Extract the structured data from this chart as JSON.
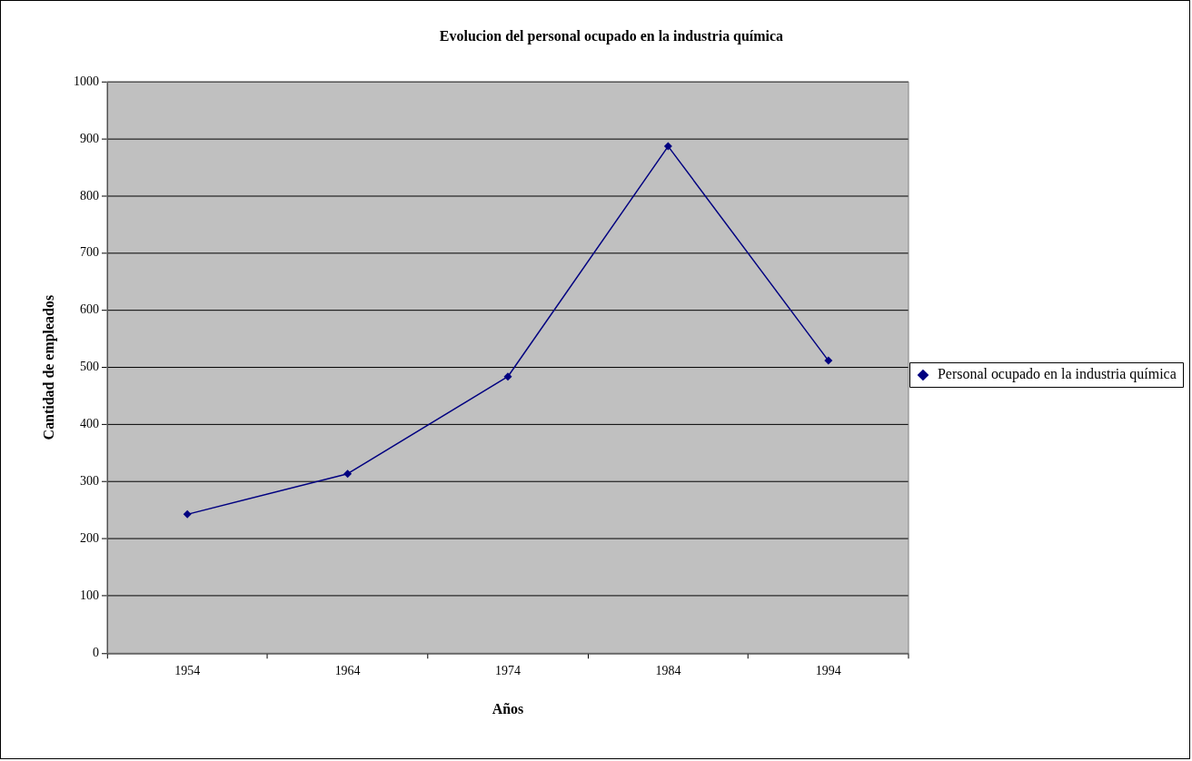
{
  "chart_data": {
    "type": "line",
    "title": "Evolucion del personal ocupado en la industria química",
    "xlabel": "Años",
    "ylabel": "Cantidad de empleados",
    "categories": [
      "1954",
      "1964",
      "1974",
      "1984",
      "1994"
    ],
    "series": [
      {
        "name": "Personal ocupado en la industria química",
        "color": "#000080",
        "values": [
          243,
          314,
          484,
          887,
          512
        ]
      }
    ],
    "ylim": [
      0,
      1000
    ],
    "yticks": [
      0,
      100,
      200,
      300,
      400,
      500,
      600,
      700,
      800,
      900,
      1000
    ],
    "grid": "y",
    "legend": "right",
    "marker": "diamond",
    "line_style": "solid"
  }
}
